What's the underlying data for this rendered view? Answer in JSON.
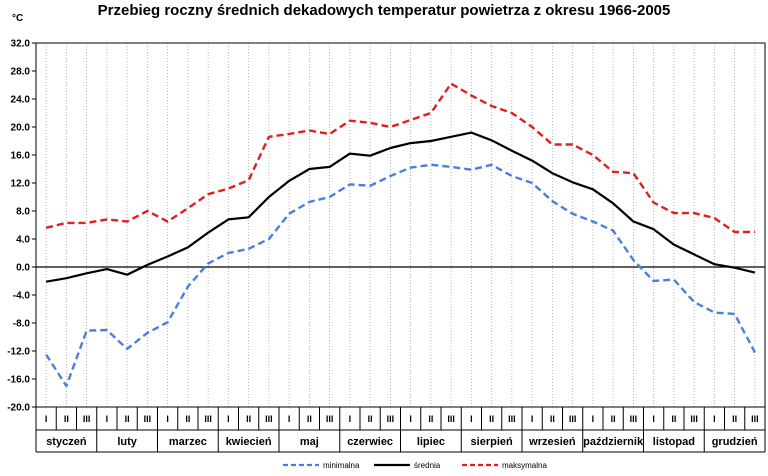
{
  "chart_data": {
    "type": "line",
    "title": "Przebieg roczny średnich dekadowych temperatur powietrza z okresu 1966-2005",
    "ylabel": "°C",
    "ylim": [
      -20,
      32
    ],
    "yticks": [
      "32.0",
      "28.0",
      "24.0",
      "20.0",
      "16.0",
      "12.0",
      "8.0",
      "4.0",
      "0.0",
      "-4.0",
      "-8.0",
      "-12.0",
      "-16.0",
      "-20.0"
    ],
    "grid": "vertical-dotted",
    "decades": [
      "I",
      "II",
      "III",
      "I",
      "II",
      "III",
      "I",
      "II",
      "III",
      "I",
      "II",
      "III",
      "I",
      "II",
      "III",
      "I",
      "II",
      "III",
      "I",
      "II",
      "III",
      "I",
      "II",
      "III",
      "I",
      "II",
      "III",
      "I",
      "II",
      "III",
      "I",
      "II",
      "III",
      "I",
      "II",
      "III"
    ],
    "months": [
      "styczeń",
      "luty",
      "marzec",
      "kwiecień",
      "maj",
      "czerwiec",
      "lipiec",
      "sierpień",
      "wrzesień",
      "październik",
      "listopad",
      "grudzień"
    ],
    "legend_position": "bottom",
    "series": [
      {
        "name": "minimalna",
        "color": "#4a7fe0",
        "dash": "dashed",
        "values": [
          -12.5,
          -17.0,
          -9.1,
          -9.0,
          -11.7,
          -9.4,
          -7.9,
          -2.8,
          0.5,
          2.0,
          2.6,
          4.0,
          7.6,
          9.3,
          10.0,
          11.8,
          11.6,
          13.0,
          14.2,
          14.6,
          14.3,
          13.9,
          14.6,
          13.0,
          12.0,
          9.4,
          7.6,
          6.5,
          5.2,
          1.0,
          -2.0,
          -1.8,
          -5.0,
          -6.5,
          -6.7,
          -12.2
        ]
      },
      {
        "name": "średnia",
        "color": "#000000",
        "dash": "solid",
        "values": [
          -2.1,
          -1.6,
          -0.9,
          -0.3,
          -1.1,
          0.3,
          1.5,
          2.8,
          4.9,
          6.8,
          7.1,
          10.0,
          12.3,
          14.0,
          14.3,
          16.2,
          15.9,
          17.0,
          17.7,
          18.0,
          18.6,
          19.2,
          18.1,
          16.6,
          15.2,
          13.4,
          12.1,
          11.1,
          9.1,
          6.5,
          5.4,
          3.2,
          1.8,
          0.4,
          -0.1,
          -0.8
        ]
      },
      {
        "name": "maksymalna",
        "color": "#e02020",
        "dash": "dashed",
        "values": [
          5.6,
          6.3,
          6.3,
          6.8,
          6.5,
          8.0,
          6.5,
          8.4,
          10.4,
          11.2,
          12.4,
          18.6,
          19.0,
          19.5,
          19.0,
          20.9,
          20.6,
          20.0,
          21.0,
          22.0,
          26.2,
          24.5,
          23.0,
          22.0,
          20.0,
          17.5,
          17.5,
          16.0,
          13.6,
          13.4,
          9.2,
          7.7,
          7.7,
          7.0,
          5.0,
          5.0
        ]
      }
    ]
  }
}
